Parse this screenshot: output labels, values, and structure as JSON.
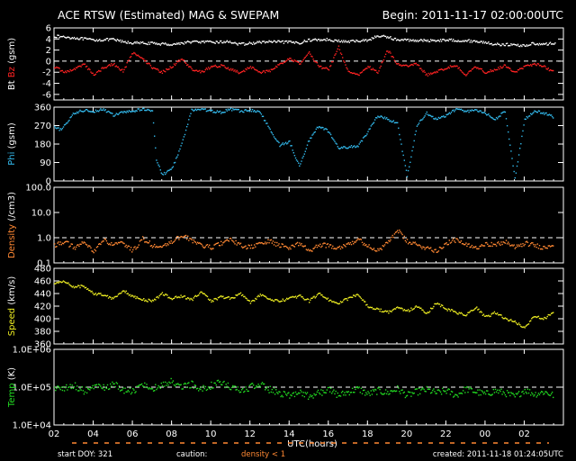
{
  "header": {
    "title": "ACE RTSW (Estimated) MAG & SWEPAM",
    "begin": "Begin: 2011-11-17 02:00:00UTC"
  },
  "footer": {
    "start_doy": "start DOY: 321",
    "caution": "caution:",
    "density_note": "density < 1",
    "created": "created: 2011-11-18 01:24:05UTC"
  },
  "colors": {
    "bt": "#ffffff",
    "bz": "#ff2222",
    "phi": "#33bbee",
    "density": "#ff8833",
    "speed": "#eeee22",
    "temp": "#22dd22",
    "frame": "#ffffff"
  },
  "chart_data": [
    {
      "type": "scatter",
      "panel": "mag",
      "title": "ACE RTSW (Estimated) MAG & SWEPAM",
      "ylabel_parts": [
        "Bt",
        "Bz",
        "(gsm)"
      ],
      "ylim": [
        -7,
        6
      ],
      "yticks": [
        6,
        4,
        2,
        0,
        -2,
        -4,
        -6
      ],
      "reference_lines": [
        0
      ],
      "series": [
        {
          "name": "Bt",
          "x": [
            0,
            1,
            2,
            3,
            3.6,
            4,
            5,
            6,
            7,
            8,
            9,
            9.4,
            10,
            10.5,
            11,
            12,
            12.5,
            13,
            14,
            14.5,
            15,
            16,
            16.5,
            17,
            17.5,
            18,
            19,
            20,
            21,
            22,
            22.5,
            23,
            24,
            24.5,
            25,
            25.6
          ],
          "values": [
            4.5,
            4.2,
            3.8,
            3.9,
            3.4,
            3.3,
            3.2,
            3.0,
            3.5,
            3.4,
            3.5,
            3.0,
            3.2,
            3.4,
            3.5,
            3.4,
            3.3,
            3.8,
            3.9,
            3.6,
            3.5,
            3.8,
            4.5,
            4.4,
            3.8,
            3.8,
            3.7,
            3.8,
            3.7,
            3.4,
            3.0,
            3.0,
            2.8,
            3.2,
            3.0,
            3.3
          ]
        },
        {
          "name": "Bz",
          "x": [
            0,
            0.5,
            1,
            1.5,
            2,
            2.5,
            3,
            3.5,
            4,
            4.5,
            5,
            5.5,
            6,
            6.5,
            7,
            7.5,
            8,
            8.5,
            9,
            9.5,
            10,
            10.5,
            11,
            11.5,
            12,
            12.5,
            13,
            13.5,
            14,
            14.5,
            15,
            15.5,
            16,
            16.5,
            17,
            17.5,
            18,
            18.5,
            19,
            19.5,
            20,
            20.5,
            21,
            21.5,
            22,
            22.5,
            23,
            23.5,
            24,
            24.5,
            25,
            25.5
          ],
          "values": [
            -1.0,
            -2.0,
            -1.5,
            -0.5,
            -2.5,
            -1.2,
            -0.5,
            -1.8,
            1.5,
            0.5,
            -1.2,
            -2.0,
            -1.0,
            0.5,
            -1.5,
            -2.0,
            -1.0,
            -0.8,
            -1.5,
            -2.2,
            -1.0,
            -2.0,
            -1.8,
            -0.5,
            0.5,
            -0.5,
            1.5,
            -1.0,
            -1.5,
            2.5,
            -2.0,
            -2.5,
            -1.0,
            -2.0,
            2.0,
            -0.5,
            -1.0,
            -0.5,
            -2.5,
            -2.0,
            -1.2,
            -0.8,
            -2.5,
            -1.0,
            -2.0,
            -1.5,
            -0.8,
            -2.0,
            -1.0,
            -0.5,
            -1.0,
            -2.0
          ]
        }
      ]
    },
    {
      "type": "scatter",
      "panel": "phi",
      "ylabel_parts": [
        "Phi",
        "(gsm)"
      ],
      "ylim": [
        0,
        360
      ],
      "yticks": [
        360,
        270,
        180,
        90,
        0
      ],
      "series": [
        {
          "name": "Phi",
          "x": [
            0,
            0.3,
            0.6,
            1,
            1.5,
            2,
            2.5,
            3,
            3.5,
            4,
            4.5,
            5,
            5.2,
            5.5,
            6,
            6.5,
            7,
            7.5,
            8,
            8.5,
            9,
            9.5,
            10,
            10.5,
            11,
            11.5,
            12,
            12.5,
            13,
            13.5,
            14,
            14.5,
            15,
            15.5,
            16,
            16.5,
            17,
            17.5,
            18,
            18.5,
            19,
            19.5,
            20,
            20.5,
            21,
            21.5,
            22,
            22.5,
            23,
            23.5,
            24,
            24.5,
            25,
            25.5
          ],
          "values": [
            260,
            250,
            280,
            330,
            345,
            340,
            350,
            320,
            335,
            340,
            350,
            345,
            100,
            30,
            60,
            180,
            345,
            350,
            340,
            335,
            350,
            340,
            345,
            335,
            250,
            175,
            190,
            70,
            200,
            270,
            240,
            160,
            165,
            170,
            240,
            320,
            300,
            280,
            20,
            270,
            330,
            300,
            320,
            350,
            340,
            345,
            330,
            300,
            340,
            10,
            300,
            340,
            330,
            310
          ]
        }
      ]
    },
    {
      "type": "scatter",
      "panel": "density",
      "ylabel_parts": [
        "Density",
        "(/cm3)"
      ],
      "yscale": "log",
      "ylim": [
        0.1,
        100.0
      ],
      "yticks": [
        100.0,
        10.0,
        1.0,
        0.1
      ],
      "yticklabels": [
        "100.0",
        "10.0",
        "1.0",
        "0.1"
      ],
      "reference_lines": [
        1.0
      ],
      "series": [
        {
          "name": "Density",
          "x": [
            0,
            0.5,
            1,
            1.5,
            2,
            2.5,
            3,
            3.5,
            4,
            4.5,
            5,
            5.5,
            6,
            6.5,
            7,
            7.5,
            8,
            8.5,
            9,
            9.5,
            10,
            10.5,
            11,
            11.5,
            12,
            12.5,
            13,
            13.5,
            14,
            14.5,
            15,
            15.5,
            16,
            16.5,
            17,
            17.5,
            18,
            18.5,
            19,
            19.5,
            20,
            20.5,
            21,
            21.5,
            22,
            22.5,
            23,
            23.5,
            24,
            24.5,
            25,
            25.5
          ],
          "values": [
            0.5,
            0.7,
            0.4,
            0.6,
            0.3,
            0.8,
            0.5,
            0.6,
            0.3,
            0.9,
            0.5,
            0.4,
            0.7,
            1.2,
            0.8,
            0.5,
            0.4,
            0.6,
            0.8,
            0.5,
            0.4,
            0.6,
            0.7,
            0.5,
            0.4,
            0.6,
            0.3,
            0.5,
            0.5,
            0.4,
            0.6,
            0.8,
            0.5,
            0.3,
            0.6,
            2.0,
            0.7,
            0.5,
            0.4,
            0.3,
            0.6,
            0.8,
            0.5,
            0.4,
            0.6,
            0.5,
            0.7,
            0.4,
            0.6,
            0.5,
            0.4,
            0.6
          ]
        }
      ]
    },
    {
      "type": "scatter",
      "panel": "speed",
      "ylabel_parts": [
        "Speed",
        "(km/s)"
      ],
      "ylim": [
        360,
        480
      ],
      "yticks": [
        480,
        460,
        440,
        420,
        400,
        380,
        360
      ],
      "series": [
        {
          "name": "Speed",
          "x": [
            0,
            0.5,
            1,
            1.5,
            2,
            2.5,
            3,
            3.5,
            4,
            4.5,
            5,
            5.5,
            6,
            6.5,
            7,
            7.5,
            8,
            8.5,
            9,
            9.5,
            10,
            10.5,
            11,
            11.5,
            12,
            12.5,
            13,
            13.5,
            14,
            14.5,
            15,
            15.5,
            16,
            16.5,
            17,
            17.5,
            18,
            18.5,
            19,
            19.5,
            20,
            20.5,
            21,
            21.5,
            22,
            22.5,
            23,
            23.5,
            24,
            24.5,
            25,
            25.5
          ],
          "values": [
            455,
            460,
            450,
            452,
            440,
            438,
            432,
            445,
            435,
            430,
            428,
            440,
            432,
            436,
            430,
            442,
            428,
            435,
            432,
            440,
            425,
            438,
            430,
            428,
            432,
            436,
            428,
            440,
            430,
            425,
            432,
            438,
            420,
            415,
            410,
            418,
            412,
            420,
            408,
            425,
            415,
            410,
            405,
            418,
            402,
            410,
            400,
            395,
            385,
            405,
            400,
            412
          ]
        }
      ]
    },
    {
      "type": "scatter",
      "panel": "temp",
      "ylabel_parts": [
        "Temp",
        "(K)"
      ],
      "yscale": "log",
      "ylim": [
        10000,
        1000000
      ],
      "yticks": [
        1000000,
        100000,
        10000
      ],
      "yticklabels": [
        "1.0E+06",
        "1.0E+05",
        "1.0E+04"
      ],
      "reference_lines": [
        100000
      ],
      "series": [
        {
          "name": "Temp",
          "x": [
            0,
            0.5,
            1,
            1.5,
            2,
            2.5,
            3,
            3.5,
            4,
            4.5,
            5,
            5.5,
            6,
            6.5,
            7,
            7.5,
            8,
            8.5,
            9,
            9.5,
            10,
            10.5,
            11,
            11.5,
            12,
            12.5,
            13,
            13.5,
            14,
            14.5,
            15,
            15.5,
            16,
            16.5,
            17,
            17.5,
            18,
            18.5,
            19,
            19.5,
            20,
            20.5,
            21,
            21.5,
            22,
            22.5,
            23,
            23.5,
            24,
            24.5,
            25,
            25.5
          ],
          "values": [
            100000,
            90000,
            110000,
            80000,
            100000,
            95000,
            120000,
            85000,
            75000,
            130000,
            90000,
            110000,
            140000,
            100000,
            120000,
            90000,
            110000,
            130000,
            95000,
            80000,
            100000,
            115000,
            85000,
            70000,
            60000,
            80000,
            55000,
            70000,
            85000,
            60000,
            75000,
            90000,
            65000,
            80000,
            70000,
            90000,
            60000,
            75000,
            85000,
            70000,
            80000,
            60000,
            90000,
            75000,
            65000,
            80000,
            70000,
            55000,
            85000,
            65000,
            75000,
            60000
          ]
        }
      ]
    }
  ],
  "xaxis": {
    "label": "UTC(hours)",
    "ticks": [
      0,
      2,
      4,
      6,
      8,
      10,
      12,
      14,
      16,
      18,
      20,
      22,
      24
    ],
    "ticklabels": [
      "02",
      "04",
      "06",
      "08",
      "10",
      "12",
      "14",
      "16",
      "18",
      "20",
      "22",
      "00",
      "02"
    ]
  }
}
